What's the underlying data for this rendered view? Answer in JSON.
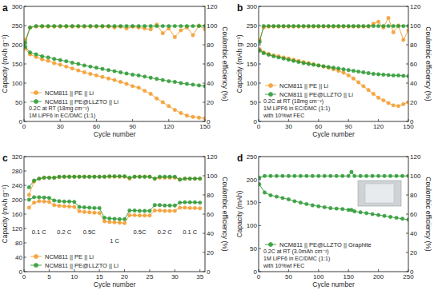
{
  "chart_data": [
    {
      "type": "line",
      "title": "a",
      "x_label": "Cycle number",
      "y_label": "Capacity (mAh g⁻¹)",
      "y2_label": "Coulombic efficiency (%)",
      "xlim": [
        0,
        150
      ],
      "xticks": [
        0,
        30,
        60,
        90,
        120,
        150
      ],
      "ylim": [
        0,
        300
      ],
      "yticks": [
        0,
        50,
        100,
        150,
        200,
        250,
        300
      ],
      "y2lim": [
        0,
        120
      ],
      "y2ticks": [
        0,
        20,
        40,
        60,
        80,
        100,
        120
      ],
      "legend": "lower left",
      "annotations": [
        "0.2C at RT (18mg cm⁻²)",
        "1M LiPF6 in EC/DMC (1:1)"
      ],
      "x": [
        1,
        5,
        10,
        15,
        20,
        25,
        30,
        35,
        40,
        45,
        50,
        55,
        60,
        65,
        70,
        75,
        80,
        85,
        90,
        95,
        100,
        105,
        110,
        115,
        120,
        125,
        130,
        135,
        140,
        145,
        150
      ],
      "series": [
        {
          "name": "NCM811 || PE || Li",
          "color": "#f39c2f",
          "marker": "circle",
          "values": [
            190,
            175,
            168,
            162,
            158,
            152,
            148,
            143,
            138,
            133,
            128,
            124,
            120,
            116,
            112,
            108,
            103,
            98,
            92,
            88,
            80,
            72,
            60,
            50,
            40,
            30,
            22,
            15,
            12,
            10,
            8
          ]
        },
        {
          "name": "NCM811 || PE@LLZTO || Li",
          "color": "#2e9a35",
          "marker": "circle",
          "values": [
            195,
            180,
            175,
            170,
            167,
            163,
            160,
            157,
            153,
            150,
            146,
            143,
            140,
            137,
            134,
            131,
            128,
            125,
            122,
            120,
            117,
            114,
            111,
            108,
            105,
            103,
            100,
            98,
            96,
            94,
            92
          ]
        },
        {
          "name": "NCM811 || PE || Li",
          "color": "#f39c2f",
          "marker": "circle",
          "axis": "y2",
          "values": [
            85,
            98,
            99,
            99,
            99,
            99,
            99,
            99,
            99,
            99,
            99,
            99,
            99,
            99,
            99,
            98,
            99,
            97,
            99,
            98,
            97,
            96,
            101,
            92,
            97,
            88,
            95,
            98,
            90,
            100,
            96
          ]
        },
        {
          "name": "NCM811 || PE@LLZTO || Li",
          "color": "#2e9a35",
          "marker": "circle",
          "axis": "y2",
          "values": [
            82,
            98,
            99.5,
            99.5,
            99.5,
            99.5,
            99.5,
            99.5,
            99.5,
            99.5,
            99.5,
            99.5,
            99.5,
            99.5,
            99.5,
            99.5,
            99.5,
            99.5,
            99.5,
            99.5,
            99.5,
            99.5,
            99.5,
            99.5,
            99.5,
            99.5,
            99.5,
            99.5,
            99.5,
            99.5,
            99.5
          ]
        }
      ]
    },
    {
      "type": "line",
      "title": "b",
      "x_label": "Cycle number",
      "y_label": "Capacity (mAh g⁻¹)",
      "y2_label": "Coulombic efficiency (%)",
      "xlim": [
        0,
        150
      ],
      "xticks": [
        0,
        30,
        60,
        90,
        120,
        150
      ],
      "ylim": [
        0,
        300
      ],
      "yticks": [
        0,
        50,
        100,
        150,
        200,
        250,
        300
      ],
      "y2lim": [
        0,
        120
      ],
      "y2ticks": [
        0,
        20,
        40,
        60,
        80,
        100,
        120
      ],
      "legend": "lower left",
      "annotations": [
        "0.2C at RT (18mg cm⁻²)",
        "1M LiPF6 in EC/DMC (1:1)",
        "with 10%wt FEC"
      ],
      "x": [
        1,
        5,
        10,
        15,
        20,
        25,
        30,
        35,
        40,
        45,
        50,
        55,
        60,
        65,
        70,
        75,
        80,
        85,
        90,
        95,
        100,
        105,
        110,
        115,
        120,
        125,
        130,
        135,
        140,
        145,
        150
      ],
      "series": [
        {
          "name": "NCM811 || PE || Li",
          "color": "#f39c2f",
          "marker": "circle",
          "values": [
            188,
            180,
            176,
            172,
            170,
            167,
            164,
            161,
            158,
            155,
            152,
            149,
            146,
            143,
            140,
            136,
            132,
            127,
            120,
            112,
            102,
            92,
            82,
            72,
            62,
            55,
            48,
            42,
            40,
            45,
            50
          ]
        },
        {
          "name": "NCM811 || PE@LLZTO || Li",
          "color": "#2e9a35",
          "marker": "circle",
          "values": [
            185,
            178,
            174,
            170,
            167,
            164,
            161,
            158,
            155,
            152,
            150,
            148,
            146,
            144,
            142,
            140,
            138,
            136,
            134,
            132,
            130,
            128,
            126,
            124,
            123,
            122,
            121,
            120,
            120,
            119,
            118
          ]
        },
        {
          "name": "NCM811 || PE || Li",
          "color": "#f39c2f",
          "marker": "circle",
          "axis": "y2",
          "values": [
            85,
            98,
            99,
            99,
            99,
            99,
            99,
            99,
            99,
            99,
            99,
            99,
            99,
            99,
            99,
            99,
            99,
            99,
            99,
            99,
            99,
            99,
            99,
            102,
            104,
            98,
            108,
            93,
            100,
            85,
            95
          ]
        },
        {
          "name": "NCM811 || PE@LLZTO || Li",
          "color": "#2e9a35",
          "marker": "circle",
          "axis": "y2",
          "values": [
            83,
            99.5,
            99.5,
            99.5,
            99.5,
            99.5,
            99.5,
            99.5,
            99.5,
            99.5,
            99.5,
            99.5,
            99.5,
            99.5,
            99.5,
            99.5,
            99.5,
            99.5,
            99.5,
            99.5,
            99.5,
            99.5,
            99.5,
            99.5,
            99.5,
            99.5,
            99.5,
            99.5,
            99.5,
            99.5,
            99.5
          ]
        }
      ]
    },
    {
      "type": "line",
      "title": "c",
      "x_label": "Cycle number",
      "y_label": "Capacity (mAh g⁻¹)",
      "y2_label": "Coulombic efficiency (%)",
      "xlim": [
        0,
        36
      ],
      "xticks": [
        0,
        5,
        10,
        15,
        20,
        25,
        30,
        35
      ],
      "ylim": [
        0,
        320
      ],
      "yticks": [
        0,
        40,
        80,
        120,
        160,
        200,
        240,
        280,
        320
      ],
      "y2lim": [
        0,
        120
      ],
      "y2ticks": [
        0,
        20,
        40,
        60,
        80,
        100,
        120
      ],
      "legend": "lower left",
      "annotations": [
        {
          "text": "0.1 C",
          "x": 3,
          "y": 105
        },
        {
          "text": "0.2 C",
          "x": 8,
          "y": 105
        },
        {
          "text": "0.5C",
          "x": 13,
          "y": 105
        },
        {
          "text": "1 C",
          "x": 18,
          "y": 80
        },
        {
          "text": "0.5C",
          "x": 23,
          "y": 105
        },
        {
          "text": "0.2 C",
          "x": 28,
          "y": 105
        },
        {
          "text": "0.1 C",
          "x": 33,
          "y": 105
        }
      ],
      "x": [
        1,
        2,
        3,
        4,
        5,
        6,
        7,
        8,
        9,
        10,
        11,
        12,
        13,
        14,
        15,
        16,
        17,
        18,
        19,
        20,
        21,
        22,
        23,
        24,
        25,
        26,
        27,
        28,
        29,
        30,
        31,
        32,
        33,
        34,
        35
      ],
      "series": [
        {
          "name": "NCM811 || PE || Li",
          "color": "#f39c2f",
          "marker": "circle",
          "values": [
            178,
            192,
            196,
            195,
            194,
            185,
            183,
            182,
            181,
            180,
            168,
            166,
            165,
            164,
            163,
            140,
            138,
            137,
            136,
            135,
            157,
            157,
            156,
            156,
            156,
            170,
            170,
            169,
            169,
            169,
            178,
            178,
            177,
            177,
            176
          ]
        },
        {
          "name": "NCM811 || PE@LLZTO || Li",
          "color": "#2e9a35",
          "marker": "circle",
          "values": [
            200,
            207,
            207,
            206,
            205,
            198,
            196,
            195,
            195,
            194,
            180,
            179,
            178,
            177,
            177,
            150,
            148,
            147,
            146,
            146,
            170,
            170,
            169,
            169,
            169,
            185,
            185,
            184,
            184,
            184,
            192,
            193,
            193,
            193,
            192
          ]
        },
        {
          "name": "NCM811 || PE || Li",
          "color": "#f39c2f",
          "marker": "circle",
          "axis": "y2",
          "values": [
            80,
            94,
            97,
            98,
            98,
            98,
            98.5,
            99,
            99,
            99,
            99,
            99,
            99,
            99,
            99,
            99,
            99,
            99,
            99,
            99,
            97,
            99,
            99,
            99,
            99,
            97,
            98,
            98,
            98,
            98,
            96,
            97,
            97,
            97,
            97
          ]
        },
        {
          "name": "NCM811 || PE@LLZTO || Li",
          "color": "#2e9a35",
          "marker": "circle",
          "axis": "y2",
          "values": [
            88,
            95,
            97,
            98,
            98,
            98,
            99,
            99,
            99,
            99,
            99,
            99,
            99,
            99,
            99,
            99,
            99.5,
            99.5,
            99.5,
            99.5,
            98,
            99,
            99,
            99,
            99,
            97,
            99,
            99,
            99,
            99,
            96,
            97,
            97,
            97,
            97
          ]
        }
      ]
    },
    {
      "type": "line",
      "title": "d",
      "x_label": "Cycle number",
      "y_label": "Capacity (mAh)",
      "y2_label": "Coulombic efficiency (%)",
      "xlim": [
        0,
        250
      ],
      "xticks": [
        0,
        50,
        100,
        150,
        200,
        250
      ],
      "ylim": [
        0,
        250
      ],
      "yticks": [
        0,
        50,
        100,
        150,
        200,
        250
      ],
      "y2lim": [
        0,
        120
      ],
      "y2ticks": [
        0,
        20,
        40,
        60,
        80,
        100,
        120
      ],
      "legend": "lower left",
      "annotations": [
        "0.2C at RT (3.0mAh cm⁻²)",
        "1M LiPF6 in EC/DMC (1:1)",
        "with 10%wt FEC"
      ],
      "x": [
        1,
        10,
        20,
        30,
        40,
        50,
        60,
        70,
        80,
        90,
        100,
        110,
        120,
        130,
        140,
        150,
        155,
        160,
        170,
        180,
        190,
        200,
        210,
        220,
        230,
        240,
        250
      ],
      "series": [
        {
          "name": "NCM811 || PE@LLZTO || Graphite",
          "color": "#2e9a35",
          "marker": "circle",
          "values": [
            190,
            172,
            166,
            163,
            160,
            157,
            153,
            150,
            147,
            144,
            142,
            140,
            138,
            137,
            136,
            134,
            134,
            131,
            129,
            127,
            125,
            123,
            121,
            119,
            117,
            115,
            113
          ]
        },
        {
          "name": "NCM811 || PE@LLZTO || Graphite",
          "color": "#2e9a35",
          "marker": "circle",
          "axis": "y2",
          "values": [
            98,
            99.8,
            99.8,
            99.8,
            99.8,
            99.8,
            99.8,
            99.8,
            99.8,
            99.8,
            99.8,
            99.8,
            99.8,
            99.8,
            99.8,
            99.8,
            104,
            99.8,
            99.8,
            99.8,
            99.8,
            99.8,
            99.8,
            99.8,
            99.8,
            99.8,
            99.8
          ]
        }
      ]
    }
  ]
}
